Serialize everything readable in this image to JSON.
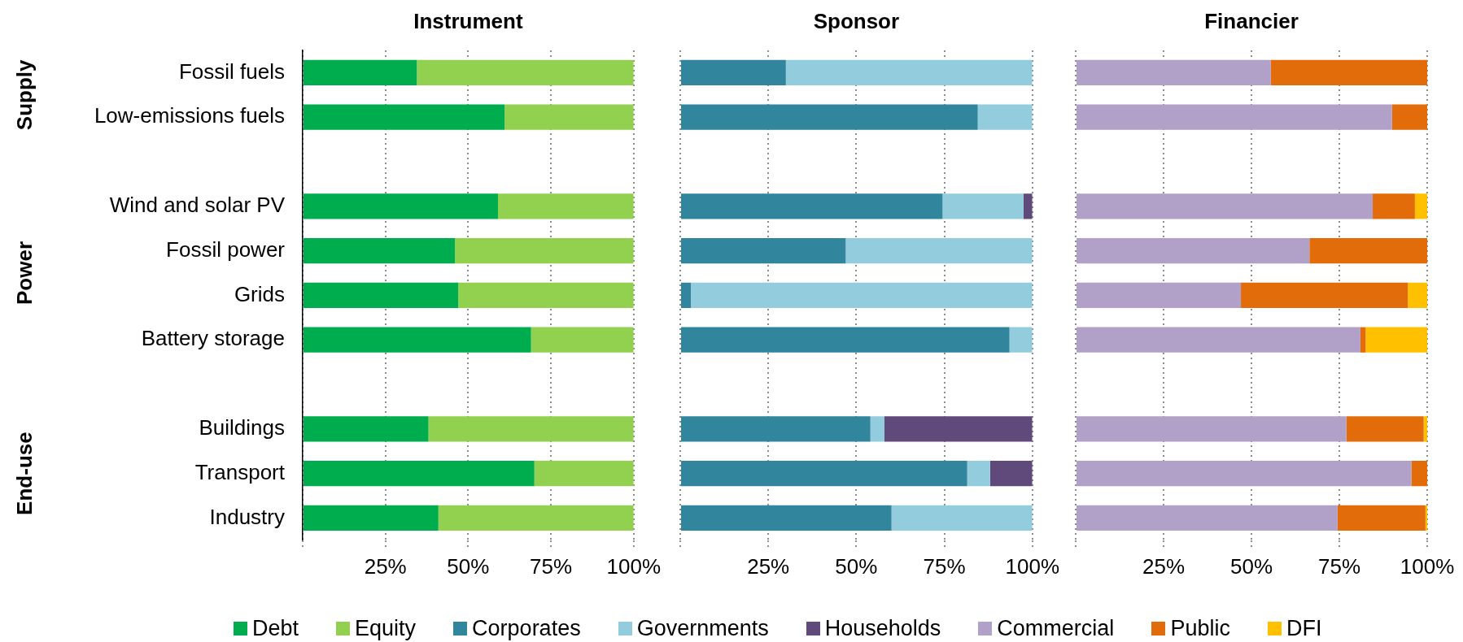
{
  "chart_data": [
    {
      "type": "bar",
      "title": "Instrument",
      "orientation": "horizontal",
      "stacked": true,
      "categories": [
        "Fossil fuels",
        "Low-emissions fuels",
        null,
        "Wind and solar PV",
        "Fossil power",
        "Grids",
        "Battery storage",
        null,
        "Buildings",
        "Transport",
        "Industry"
      ],
      "series": [
        {
          "name": "Debt",
          "color": "#00ad4e",
          "values": [
            34.5,
            61,
            null,
            59,
            46,
            47,
            69,
            null,
            38,
            70,
            41
          ]
        },
        {
          "name": "Equity",
          "color": "#92d050",
          "values": [
            65.5,
            39,
            null,
            41,
            54,
            53,
            31,
            null,
            62,
            30,
            59
          ]
        }
      ],
      "xlim": [
        0,
        100
      ],
      "xticks": [
        {
          "value": 0,
          "label": null
        },
        {
          "value": 25,
          "label": "25%"
        },
        {
          "value": 50,
          "label": "50%"
        },
        {
          "value": 75,
          "label": "75%"
        },
        {
          "value": 100,
          "label": "100%"
        }
      ],
      "grid": "x",
      "legend": "bottom",
      "annotations": [
        "Supply",
        "Power",
        "End-use"
      ]
    },
    {
      "type": "bar",
      "title": "Sponsor",
      "orientation": "horizontal",
      "stacked": true,
      "categories": [
        null,
        null,
        null,
        null,
        null,
        null,
        null,
        null,
        null,
        null,
        null
      ],
      "series": [
        {
          "name": "Corporates",
          "color": "#31859c",
          "values": [
            30,
            84.5,
            null,
            74.5,
            47,
            3,
            93.5,
            null,
            54,
            81.5,
            60
          ]
        },
        {
          "name": "Governments",
          "color": "#93cddd",
          "values": [
            70,
            15.5,
            null,
            23,
            53,
            97,
            6.5,
            null,
            4,
            6.5,
            40
          ]
        },
        {
          "name": "Households",
          "color": "#604a7b",
          "values": [
            0,
            0,
            null,
            2.5,
            0,
            0,
            0,
            null,
            42,
            12,
            0
          ]
        }
      ],
      "xlim": [
        0,
        100
      ],
      "xticks": [
        {
          "value": 0,
          "label": null
        },
        {
          "value": 25,
          "label": "25%"
        },
        {
          "value": 50,
          "label": "50%"
        },
        {
          "value": 75,
          "label": "75%"
        },
        {
          "value": 100,
          "label": "100%"
        }
      ],
      "grid": "x",
      "legend": "bottom",
      "tick_labels": "x"
    },
    {
      "type": "bar",
      "title": "Financier",
      "orientation": "horizontal",
      "stacked": true,
      "categories": [
        null,
        null,
        null,
        null,
        null,
        null,
        null,
        null,
        null,
        null,
        null
      ],
      "series": [
        {
          "name": "Commercial",
          "color": "#b1a0c7",
          "values": [
            55.5,
            90,
            null,
            84.5,
            66.5,
            47,
            81,
            null,
            77,
            95.5,
            74.5
          ]
        },
        {
          "name": "Public",
          "color": "#e36c0a",
          "values": [
            44.5,
            10,
            null,
            12,
            33.5,
            47.5,
            1.5,
            null,
            22,
            4.5,
            25
          ]
        },
        {
          "name": "DFI",
          "color": "#ffc000",
          "values": [
            0,
            0,
            null,
            3.5,
            0,
            5.5,
            17.5,
            null,
            1,
            0,
            0.5
          ]
        }
      ],
      "xlim": [
        0,
        100
      ],
      "xticks": [
        {
          "value": 0,
          "label": null
        },
        {
          "value": 25,
          "label": "25%"
        },
        {
          "value": 50,
          "label": "50%"
        },
        {
          "value": 75,
          "label": "75%"
        },
        {
          "value": 100,
          "label": "100%"
        }
      ],
      "grid": "x",
      "legend": "bottom",
      "tick_labels": "x"
    }
  ]
}
